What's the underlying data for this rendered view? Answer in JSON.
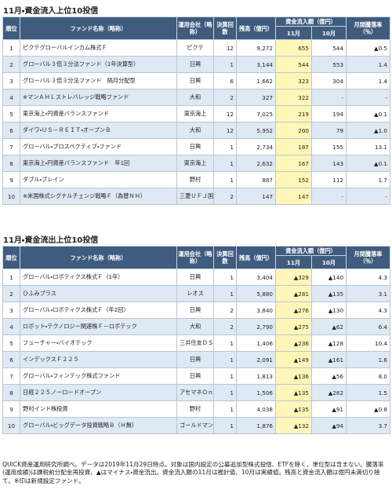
{
  "inflow": {
    "title": "11月・資金流入上位10投信",
    "headers": [
      "順位",
      "ファンド名称（略称）",
      "運用会社（略称）",
      "決算回数",
      "残高（億円）",
      "資金流入額（億円）",
      "11月",
      "10月",
      "月間騰落率（％）"
    ],
    "rows": [
      [
        "1",
        "ピクテグローバルインカム株式Ｆ",
        "ピクテ",
        "12",
        "9,272",
        "655",
        "544",
        "▲0.5"
      ],
      [
        "2",
        "グローバル３倍３分法ファンド（1年決算型）",
        "日興",
        "1",
        "3,144",
        "544",
        "553",
        "1.4"
      ],
      [
        "3",
        "グローバル３倍３分法ファンド　隔月分配型",
        "日興",
        "6",
        "1,662",
        "323",
        "304",
        "1.4"
      ],
      [
        "4",
        "※マンＡＨＬストレバレッジ戦略ファンド",
        "大和",
        "2",
        "327",
        "322",
        "-",
        "-"
      ],
      [
        "5",
        "東京海上・円資産バランスファンド",
        "東京海上",
        "12",
        "7,025",
        "219",
        "194",
        "▲0.1"
      ],
      [
        "6",
        "ダイワ・ＵＳ－ＲＥＩＴ・オープンＢ",
        "大和",
        "12",
        "5,952",
        "200",
        "79",
        "▲1.0"
      ],
      [
        "7",
        "グローバル・プロスペクティブ・ファンド",
        "日興",
        "1",
        "2,734",
        "187",
        "155",
        "13.1"
      ],
      [
        "8",
        "東京海上・円資産バランスファンド　年1回",
        "東京海上",
        "1",
        "2,632",
        "167",
        "143",
        "▲0.1"
      ],
      [
        "9",
        "ダブル・ブレイン",
        "野村",
        "1",
        "887",
        "152",
        "112",
        "1.7"
      ],
      [
        "10",
        "※米国株式シグナルチェンジ戦略Ｆ（為替ＮＨ）",
        "三菱ＵＦＪ国際",
        "2",
        "147",
        "147",
        "-",
        "-"
      ]
    ]
  },
  "outflow": {
    "title": "11月・資金流出上位10投信",
    "headers": [
      "順位",
      "ファンド名称（略称）",
      "運用会社（略称）",
      "決算回数",
      "残高（億円）",
      "資金流入額（億円）",
      "11月",
      "10月",
      "月間騰落率（％）"
    ],
    "rows": [
      [
        "1",
        "グローバル・ロボティクス株式Ｆ（1年）",
        "日興",
        "1",
        "3,404",
        "▲329",
        "▲140",
        "4.3"
      ],
      [
        "2",
        "ひふみプラス",
        "レオス",
        "1",
        "5,880",
        "▲281",
        "▲135",
        "3.1"
      ],
      [
        "3",
        "グローバル・ロボティクス株式Ｆ（年2回）",
        "日興",
        "2",
        "3,840",
        "▲276",
        "▲130",
        "4.3"
      ],
      [
        "4",
        "ロボット・テクノロジー関連株Ｆ－ロボテック",
        "大和",
        "2",
        "2,790",
        "▲275",
        "▲62",
        "6.4"
      ],
      [
        "5",
        "フューチャー・バイオテック",
        "三井住友ＤＳ",
        "1",
        "1,406",
        "▲236",
        "▲128",
        "10.4"
      ],
      [
        "6",
        "インデックスＦ２２５",
        "日興",
        "1",
        "2,091",
        "▲149",
        "▲161",
        "1.6"
      ],
      [
        "7",
        "グローバル・フィンテック株式ファンド",
        "日興",
        "1",
        "1,813",
        "▲136",
        "▲56",
        "8.0"
      ],
      [
        "8",
        "日経２２５ノーロードオープン",
        "アセマネＯｎｅ",
        "1",
        "1,506",
        "▲135",
        "▲262",
        "1.5"
      ],
      [
        "9",
        "野村インド株投資",
        "野村",
        "1",
        "4,038",
        "▲135",
        "▲91",
        "▲0.8"
      ],
      [
        "10",
        "グローバル・ビッグデータ投資戦略Ｂ（Ｈ無）",
        "ゴールドマン",
        "1",
        "1,876",
        "▲132",
        "▲94",
        "3.7"
      ]
    ]
  },
  "note": "QUICK資産運用研究所調べ。データは2019年11月29日時点。対象は国内設定の公募追加型株式投信、ETFを除く、単位型は含まない。騰落率(運用成績)は課税前分配金再投資、▲はマイナス・資金流出。資金流入額の11月は推計値、10月は実績値。残高と資金流入額は億円未満切り捨て。※印は新規設定ファンド。"
}
